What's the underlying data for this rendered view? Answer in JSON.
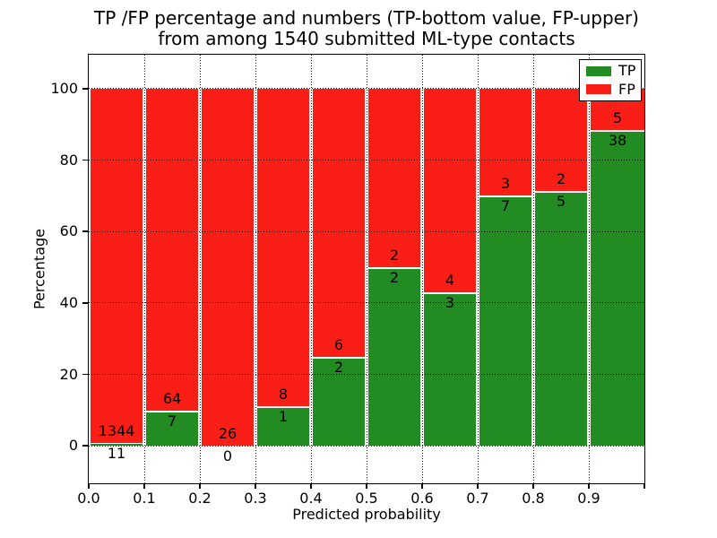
{
  "chart_data": {
    "type": "bar",
    "stacked": true,
    "title_lines": [
      "TP /FP percentage and numbers (TP-bottom value, FP-upper)",
      "from among 1540 submitted ML-type contacts"
    ],
    "xlabel": "Predicted probability",
    "ylabel": "Percentage",
    "xlim": [
      0.0,
      1.0
    ],
    "ylim": [
      -10.5,
      109.5
    ],
    "bin_width": 0.1,
    "bin_starts": [
      0.0,
      0.1,
      0.2,
      0.3,
      0.4,
      0.5,
      0.6,
      0.7,
      0.8,
      0.9
    ],
    "x_tick_labels": [
      "0.0",
      "0.1",
      "0.2",
      "0.3",
      "0.4",
      "0.5",
      "0.6",
      "0.7",
      "0.8",
      "0.9"
    ],
    "y_tick_values": [
      0,
      20,
      40,
      60,
      80,
      100
    ],
    "y_tick_labels": [
      "0",
      "20",
      "40",
      "60",
      "80",
      "100"
    ],
    "grid": "dotted",
    "series": [
      {
        "name": "TP",
        "color": "#228b22",
        "counts": [
          11,
          7,
          0,
          1,
          2,
          2,
          3,
          7,
          5,
          38
        ]
      },
      {
        "name": "FP",
        "color": "#fa1f16",
        "counts": [
          1344,
          64,
          26,
          8,
          6,
          2,
          4,
          3,
          2,
          5
        ]
      }
    ],
    "bars_show": "percentage TP/(TP+FP) stacked to 100%, count labels at segment boundary",
    "legend": {
      "position": "upper right",
      "items": [
        {
          "label": "TP",
          "color": "#228b22"
        },
        {
          "label": "FP",
          "color": "#fa1f16"
        }
      ]
    }
  }
}
